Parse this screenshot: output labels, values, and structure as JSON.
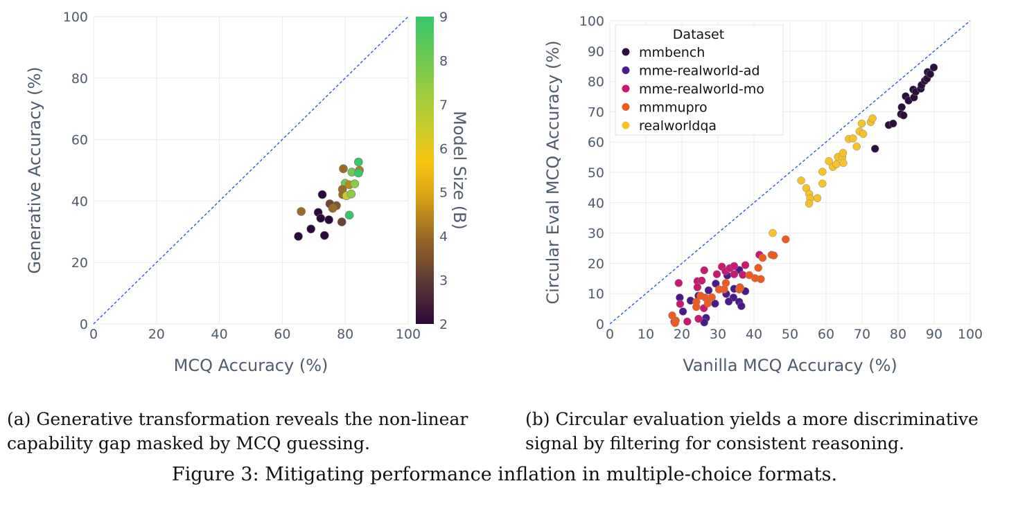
{
  "chart_data": [
    {
      "type": "scatter",
      "title": "",
      "xlabel": "MCQ Accuracy (%)",
      "ylabel": "Generative Accuracy (%)",
      "xlim": [
        0,
        100
      ],
      "ylim": [
        0,
        100
      ],
      "xticks": [
        "0",
        "20",
        "40",
        "60",
        "80",
        "100"
      ],
      "yticks": [
        "0",
        "20",
        "40",
        "60",
        "80",
        "100"
      ],
      "grid": true,
      "diagonal": "y = x (dashed)",
      "colorbar": {
        "label": "Model Size (B)",
        "range": [
          2,
          9
        ],
        "ticks": [
          "2",
          "3",
          "4",
          "5",
          "6",
          "7",
          "8",
          "9"
        ]
      },
      "points": [
        {
          "x": 84.2,
          "y": 52.7,
          "size": 9
        },
        {
          "x": 79.4,
          "y": 50.5,
          "size": 4
        },
        {
          "x": 82.1,
          "y": 49.4,
          "size": 8
        },
        {
          "x": 84.5,
          "y": 50.0,
          "size": 4.3
        },
        {
          "x": 84.2,
          "y": 49.1,
          "size": 9
        },
        {
          "x": 80.0,
          "y": 45.8,
          "size": 8
        },
        {
          "x": 81.3,
          "y": 45.3,
          "size": 4.5
        },
        {
          "x": 83.0,
          "y": 45.6,
          "size": 7.5
        },
        {
          "x": 79.1,
          "y": 43.8,
          "size": 4
        },
        {
          "x": 79.2,
          "y": 42.1,
          "size": 4
        },
        {
          "x": 80.4,
          "y": 41.7,
          "size": 6.5
        },
        {
          "x": 81.9,
          "y": 42.3,
          "size": 7.5
        },
        {
          "x": 72.7,
          "y": 42.1,
          "size": 2
        },
        {
          "x": 75.1,
          "y": 39.1,
          "size": 3.3
        },
        {
          "x": 77.2,
          "y": 38.5,
          "size": 3.6
        },
        {
          "x": 76.0,
          "y": 37.6,
          "size": 4
        },
        {
          "x": 66.0,
          "y": 36.6,
          "size": 4
        },
        {
          "x": 71.4,
          "y": 36.3,
          "size": 2
        },
        {
          "x": 72.2,
          "y": 34.4,
          "size": 2
        },
        {
          "x": 74.8,
          "y": 33.9,
          "size": 2
        },
        {
          "x": 81.3,
          "y": 35.4,
          "size": 9
        },
        {
          "x": 78.9,
          "y": 33.2,
          "size": 3.2
        },
        {
          "x": 69.1,
          "y": 30.9,
          "size": 2
        },
        {
          "x": 65.1,
          "y": 28.5,
          "size": 2
        },
        {
          "x": 73.4,
          "y": 28.8,
          "size": 2
        }
      ]
    },
    {
      "type": "scatter",
      "title": "",
      "xlabel": "Vanilla MCQ Accuracy (%)",
      "ylabel": "Circular Eval MCQ Accuracy (%)",
      "xlim": [
        0,
        100
      ],
      "ylim": [
        0,
        100
      ],
      "xticks": [
        "0",
        "10",
        "20",
        "30",
        "40",
        "50",
        "60",
        "70",
        "80",
        "90",
        "100"
      ],
      "yticks": [
        "0",
        "10",
        "20",
        "30",
        "40",
        "50",
        "60",
        "70",
        "80",
        "90",
        "100"
      ],
      "grid": true,
      "diagonal": "y = x (dashed)",
      "legend": {
        "title": "Dataset",
        "placement": "top-left"
      },
      "series": [
        {
          "name": "mmbench",
          "color": "#2b0f3b",
          "points": [
            [
              73.6,
              57.8
            ],
            [
              77.4,
              65.6
            ],
            [
              78.6,
              66.1
            ],
            [
              81.0,
              71.5
            ],
            [
              80.8,
              69.2
            ],
            [
              81.5,
              68.8
            ],
            [
              82.1,
              75.1
            ],
            [
              82.9,
              73.7
            ],
            [
              84.4,
              74.7
            ],
            [
              84.2,
              77.3
            ],
            [
              84.9,
              76.6
            ],
            [
              86.3,
              77.6
            ],
            [
              86.5,
              78.8
            ],
            [
              87.4,
              80.2
            ],
            [
              88.0,
              80.9
            ],
            [
              88.2,
              83.1
            ],
            [
              88.9,
              82.4
            ],
            [
              89.9,
              84.6
            ]
          ]
        },
        {
          "name": "mme-realworld-ad",
          "color": "#4a1a8c",
          "points": [
            [
              35.9,
              17.8
            ],
            [
              32.6,
              16.0
            ],
            [
              29.4,
              13.3
            ],
            [
              27.4,
              11.1
            ],
            [
              34.5,
              11.6
            ],
            [
              32.3,
              9.9
            ],
            [
              34.3,
              8.7
            ],
            [
              33.0,
              7.4
            ],
            [
              35.9,
              7.3
            ],
            [
              36.5,
              5.9
            ],
            [
              29.2,
              6.7
            ],
            [
              22.4,
              7.7
            ],
            [
              19.4,
              8.7
            ],
            [
              20.3,
              4.1
            ],
            [
              26.7,
              2.0
            ],
            [
              26.2,
              0.5
            ],
            [
              37.6,
              10.8
            ],
            [
              24.6,
              9.3
            ]
          ]
        },
        {
          "name": "mme-realworld-mo",
          "color": "#c8186f",
          "points": [
            [
              41.5,
              22.8
            ],
            [
              31.1,
              18.9
            ],
            [
              32.1,
              17.4
            ],
            [
              33.3,
              18.4
            ],
            [
              34.5,
              19.1
            ],
            [
              34.5,
              16.4
            ],
            [
              37.6,
              19.4
            ],
            [
              36.9,
              16.2
            ],
            [
              26.2,
              17.7
            ],
            [
              29.7,
              16.4
            ],
            [
              19.1,
              13.5
            ],
            [
              24.3,
              14.1
            ],
            [
              25.5,
              14.3
            ],
            [
              24.3,
              12.1
            ],
            [
              36.1,
              12.1
            ],
            [
              19.5,
              6.6
            ],
            [
              26.1,
              5.2
            ],
            [
              24.6,
              1.7
            ],
            [
              21.5,
              0.8
            ],
            [
              17.9,
              0.7
            ]
          ]
        },
        {
          "name": "mmmupro",
          "color": "#f05a1c",
          "points": [
            [
              48.8,
              27.9
            ],
            [
              44.9,
              22.8
            ],
            [
              45.5,
              22.6
            ],
            [
              42.4,
              21.8
            ],
            [
              41.2,
              18.5
            ],
            [
              41.9,
              14.8
            ],
            [
              40.3,
              15.1
            ],
            [
              38.7,
              16.1
            ],
            [
              32.2,
              13.5
            ],
            [
              31.7,
              11.4
            ],
            [
              30.3,
              11.4
            ],
            [
              35.9,
              11.4
            ],
            [
              36.2,
              11.9
            ],
            [
              26.5,
              8.7
            ],
            [
              25.2,
              9.3
            ],
            [
              28.3,
              8.8
            ],
            [
              27.2,
              6.8
            ],
            [
              24.0,
              7.3
            ],
            [
              24.0,
              5.6
            ],
            [
              17.3,
              2.8
            ],
            [
              18.3,
              1.1
            ],
            [
              18.1,
              0.3
            ]
          ]
        },
        {
          "name": "realworldqa",
          "color": "#f6c12a",
          "points": [
            [
              45.2,
              30.0
            ],
            [
              53.1,
              47.3
            ],
            [
              54.5,
              44.8
            ],
            [
              55.3,
              42.9
            ],
            [
              55.6,
              41.4
            ],
            [
              55.3,
              39.7
            ],
            [
              57.6,
              41.5
            ],
            [
              59.0,
              50.2
            ],
            [
              59.0,
              46.3
            ],
            [
              60.8,
              53.7
            ],
            [
              61.9,
              51.8
            ],
            [
              62.9,
              52.7
            ],
            [
              63.3,
              55.1
            ],
            [
              64.5,
              55.0
            ],
            [
              64.7,
              56.4
            ],
            [
              64.8,
              53.1
            ],
            [
              66.3,
              61.0
            ],
            [
              67.5,
              61.2
            ],
            [
              68.5,
              58.5
            ],
            [
              69.3,
              63.5
            ],
            [
              70.3,
              62.7
            ],
            [
              69.9,
              66.1
            ],
            [
              72.4,
              66.6
            ],
            [
              72.9,
              67.8
            ]
          ]
        }
      ]
    }
  ],
  "captions": {
    "a_line1": "(a) Generative transformation reveals the non-linear",
    "a_line2": "capability gap masked by MCQ guessing.",
    "b_line1": "(b) Circular evaluation yields a more discriminative",
    "b_line2": "signal by filtering for consistent reasoning.",
    "figure": "Figure 3: Mitigating performance inflation in multiple-choice formats."
  }
}
